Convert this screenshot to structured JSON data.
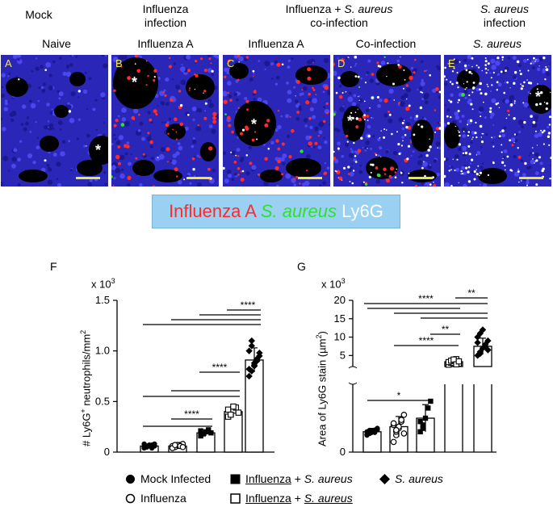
{
  "headers": {
    "mock": "Mock",
    "influenza_infection": [
      "Influenza",
      "infection"
    ],
    "coinfection": [
      "Influenza + ",
      "S. aureus",
      "co-infection"
    ],
    "saureus_infection": [
      "S. aureus",
      "infection"
    ]
  },
  "subheaders": [
    "Naive",
    "Influenza A",
    "Influenza A",
    "Co-infection",
    "S. aureus"
  ],
  "panels": [
    {
      "letter": "A",
      "stars": 1,
      "intensity": "naive"
    },
    {
      "letter": "B",
      "stars": 1,
      "intensity": "influenza"
    },
    {
      "letter": "C",
      "stars": 1,
      "intensity": "influenza"
    },
    {
      "letter": "D",
      "stars": 1,
      "intensity": "coinfection"
    },
    {
      "letter": "E",
      "stars": 1,
      "intensity": "saureus"
    }
  ],
  "star_symbol": "*",
  "stain_legend": {
    "influenza": {
      "text": "Influenza A",
      "color": "#ff2a2a"
    },
    "saureus": {
      "text": "S. aureus",
      "color": "#2fe02f"
    },
    "ly6g": {
      "text": "Ly6G",
      "color": "#ffffff"
    }
  },
  "chart_data": [
    {
      "panel": "F",
      "type": "bar",
      "multiplier": "x 10",
      "multiplier_exp": "3",
      "ylabel": "# Ly6G+ neutrophils/mm2",
      "ylabel_parts": [
        "# Ly6G",
        "+",
        " neutrophils/mm",
        "2"
      ],
      "ylim": [
        0,
        1.5
      ],
      "yticks": [
        "0",
        "0.5",
        "1.0",
        "1.5"
      ],
      "categories": [
        "Mock Infected",
        "Influenza",
        "Influenza + S. aureus (flu)",
        "Influenza + S. aureus (coinfection)",
        "S. aureus"
      ],
      "values": [
        0.06,
        0.06,
        0.19,
        0.4,
        0.91
      ],
      "errors": [
        0.02,
        0.02,
        0.03,
        0.05,
        0.12
      ],
      "points": [
        [
          0.04,
          0.05,
          0.06,
          0.07,
          0.08,
          0.05,
          0.06,
          0.07,
          0.04,
          0.06,
          0.08,
          0.05
        ],
        [
          0.04,
          0.05,
          0.06,
          0.07,
          0.08,
          0.06,
          0.05,
          0.07,
          0.06,
          0.05,
          0.04,
          0.07
        ],
        [
          0.16,
          0.18,
          0.2,
          0.22,
          0.19,
          0.21
        ],
        [
          0.35,
          0.38,
          0.41,
          0.44,
          0.39,
          0.42,
          0.37,
          0.45
        ],
        [
          0.75,
          0.8,
          0.85,
          0.9,
          0.95,
          1.0,
          1.05,
          0.88,
          0.92,
          0.98,
          0.82,
          1.1,
          0.86
        ]
      ],
      "significance": [
        {
          "from": 0,
          "to": 2,
          "label": ""
        },
        {
          "from": 1,
          "to": 2,
          "label": "****"
        },
        {
          "from": 0,
          "to": 3,
          "label": ""
        },
        {
          "from": 1,
          "to": 3,
          "label": ""
        },
        {
          "from": 2,
          "to": 3,
          "label": "****"
        },
        {
          "from": 0,
          "to": 4,
          "label": ""
        },
        {
          "from": 1,
          "to": 4,
          "label": ""
        },
        {
          "from": 2,
          "to": 4,
          "label": ""
        },
        {
          "from": 3,
          "to": 4,
          "label": "****"
        }
      ]
    },
    {
      "panel": "G",
      "type": "bar",
      "multiplier": "x 10",
      "multiplier_exp": "3",
      "ylabel": "Area of Ly6G stain (µm2)",
      "ylabel_parts": [
        "Area of  Ly6G stain (µm",
        "2",
        ")"
      ],
      "ylim": [
        0,
        20
      ],
      "axis_break": true,
      "yticks_upper": [
        "5",
        "10",
        "15",
        "20"
      ],
      "yticks_lower": [
        "0"
      ],
      "categories": [
        "Mock Infected",
        "Influenza",
        "Influenza + S. aureus (flu)",
        "Influenza + S. aureus (coinfection)",
        "S. aureus"
      ],
      "values": [
        0.6,
        0.75,
        1.0,
        3.3,
        7.5
      ],
      "errors": [
        0.1,
        0.3,
        0.4,
        0.8,
        2.2
      ],
      "points": [
        [
          0.5,
          0.55,
          0.6,
          0.65,
          0.7,
          0.6,
          0.55,
          0.62,
          0.58,
          0.66,
          0.52,
          0.64
        ],
        [
          0.3,
          0.5,
          0.7,
          0.9,
          1.1,
          0.8,
          0.6,
          0.75,
          0.95,
          0.55,
          0.85,
          0.65
        ],
        [
          0.6,
          0.8,
          1.0,
          1.3,
          1.5,
          0.9,
          0.7
        ],
        [
          2.5,
          3.0,
          3.5,
          4.0,
          2.8,
          3.2,
          3.6,
          3.9,
          2.6,
          3.4
        ],
        [
          5.0,
          6.0,
          7.0,
          8.0,
          9.0,
          10.0,
          11.0,
          12.0,
          7.5,
          6.5,
          8.5,
          5.5
        ]
      ],
      "significance": [
        {
          "from": 0,
          "to": 2,
          "label": "*"
        },
        {
          "from": 1,
          "to": 3,
          "label": "****"
        },
        {
          "from": 2,
          "to": 3,
          "label": "**"
        },
        {
          "from": 0,
          "to": 3,
          "label": ""
        },
        {
          "from": 0,
          "to": 4,
          "label": "****"
        },
        {
          "from": 1,
          "to": 4,
          "label": ""
        },
        {
          "from": 2,
          "to": 4,
          "label": ""
        },
        {
          "from": 3,
          "to": 4,
          "label": "**"
        }
      ]
    }
  ],
  "series_legend": [
    {
      "marker": "filled-circle",
      "parts": [
        {
          "t": "Mock Infected",
          "u": false,
          "i": false
        }
      ]
    },
    {
      "marker": "filled-square",
      "parts": [
        {
          "t": "Influenza",
          "u": true,
          "i": false
        },
        {
          "t": " + ",
          "u": false,
          "i": false
        },
        {
          "t": "S. aureus",
          "u": false,
          "i": true
        }
      ]
    },
    {
      "marker": "filled-diamond",
      "parts": [
        {
          "t": "S. aureus",
          "u": false,
          "i": true
        }
      ]
    },
    {
      "marker": "open-circle",
      "parts": [
        {
          "t": "Influenza",
          "u": false,
          "i": false
        }
      ]
    },
    {
      "marker": "open-square",
      "parts": [
        {
          "t": "Influenza",
          "u": true,
          "i": false
        },
        {
          "t": " + ",
          "u": false,
          "i": false
        },
        {
          "t": "S. aureus",
          "u": true,
          "i": true
        }
      ]
    }
  ]
}
